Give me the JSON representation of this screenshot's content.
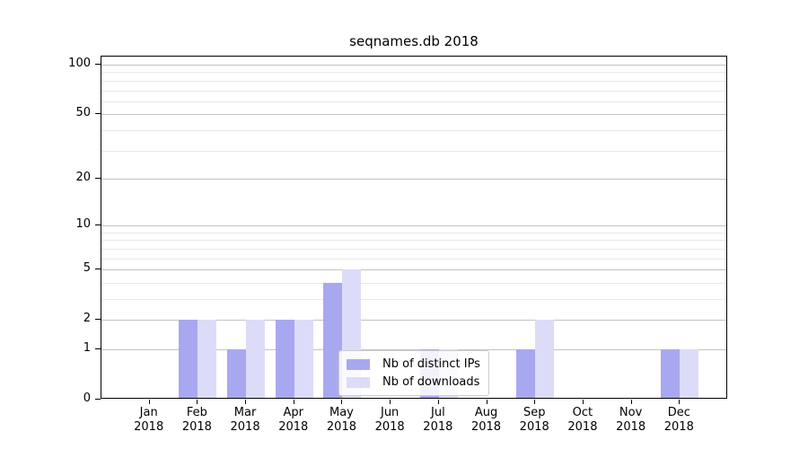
{
  "chart_data": {
    "type": "bar",
    "title": "seqnames.db 2018",
    "categories": [
      "Jan 2018",
      "Feb 2018",
      "Mar 2018",
      "Apr 2018",
      "May 2018",
      "Jun 2018",
      "Jul 2018",
      "Aug 2018",
      "Sep 2018",
      "Oct 2018",
      "Nov 2018",
      "Dec 2018"
    ],
    "series": [
      {
        "name": "Nb of distinct IPs",
        "color": "#a8a8f0",
        "values": [
          0,
          2,
          1,
          2,
          4,
          0,
          1,
          0,
          1,
          0,
          0,
          1
        ]
      },
      {
        "name": "Nb of downloads",
        "color": "#dcdcf8",
        "values": [
          0,
          2,
          2,
          2,
          5,
          0,
          1,
          0,
          2,
          0,
          0,
          1
        ]
      }
    ],
    "xlabel": "",
    "ylabel": "",
    "yscale": "log1p",
    "ylim": [
      0,
      112
    ],
    "y_major_ticks": [
      0,
      1,
      2,
      5,
      10,
      20,
      50,
      100
    ],
    "y_minor_gridlines": [
      3,
      4,
      6,
      7,
      8,
      9,
      30,
      40,
      60,
      70,
      80,
      90
    ],
    "grid": "horizontal",
    "legend_position": "lower-center-inside",
    "colors": {
      "major_grid": "#c3c3c3",
      "minor_grid": "#e9e9e9",
      "axis": "#000000",
      "background": "#ffffff"
    }
  }
}
